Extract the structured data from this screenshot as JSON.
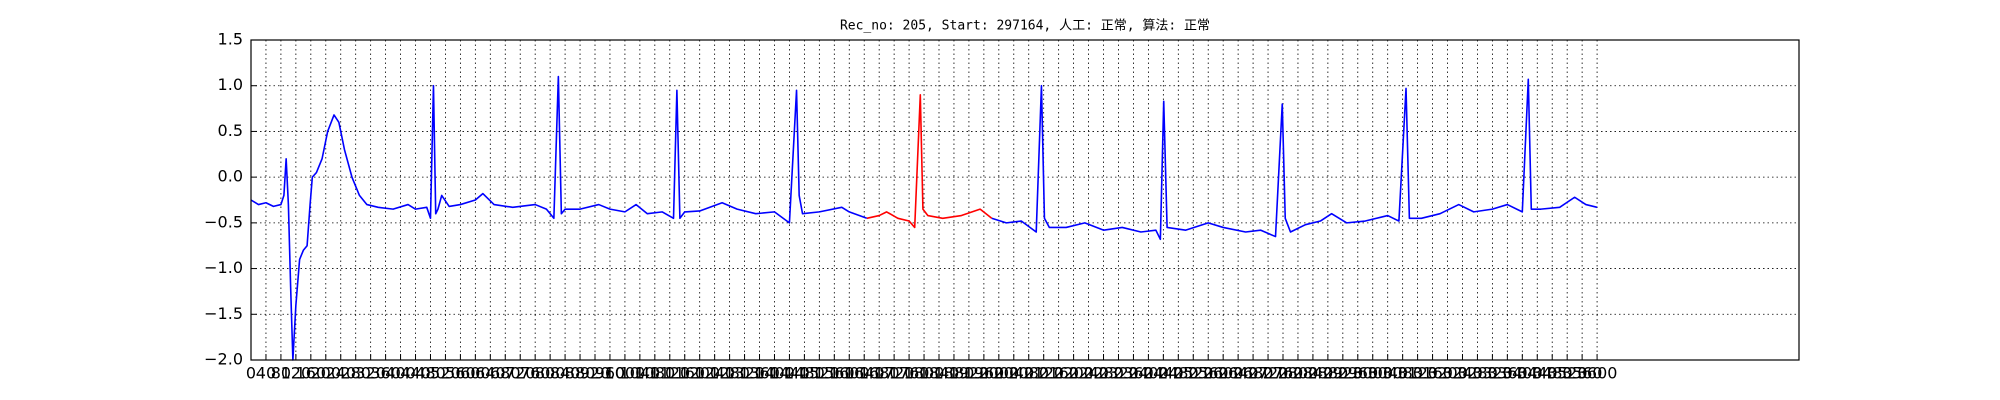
{
  "chart_data": {
    "type": "line",
    "title": "Rec_no: 205, Start: 297164, 人工: 正常, 算法: 正常",
    "xlim": [
      0,
      4140
    ],
    "ylim": [
      -2.0,
      1.5
    ],
    "xticks": [
      0,
      40,
      80,
      120,
      160,
      200,
      240,
      280,
      320,
      360,
      400,
      440,
      480,
      520,
      560,
      600,
      640,
      680,
      720,
      760,
      800,
      840,
      880,
      920,
      960,
      1000,
      1040,
      1080,
      1120,
      1160,
      1200,
      1240,
      1280,
      1320,
      1360,
      1400,
      1440,
      1480,
      1520,
      1560,
      1600,
      1640,
      1680,
      1720,
      1760,
      1800,
      1840,
      1880,
      1920,
      1960,
      2000,
      2040,
      2080,
      2120,
      2160,
      2200,
      2240,
      2280,
      2320,
      2360,
      2400,
      2440,
      2480,
      2520,
      2560,
      2600,
      2640,
      2680,
      2720,
      2760,
      2800,
      2840,
      2880,
      2920,
      2960,
      3000,
      3040,
      3080,
      3120,
      3160,
      3200,
      3240,
      3280,
      3320,
      3360,
      3400,
      3440,
      3480,
      3520,
      3560,
      3600
    ],
    "yticks": [
      {
        "value": -2.0,
        "label": "−2.0"
      },
      {
        "value": -1.5,
        "label": "−1.5"
      },
      {
        "value": -1.0,
        "label": "−1.0"
      },
      {
        "value": -0.5,
        "label": "−0.5"
      },
      {
        "value": 0.0,
        "label": "0.0"
      },
      0.5,
      {
        "value": 1.0,
        "label": "1.0"
      },
      1.5
    ],
    "grid": true,
    "series": [
      {
        "color": "#0000ff",
        "x": [
          0,
          20,
          40,
          60,
          80,
          88,
          94,
          100,
          106,
          112,
          120,
          130,
          140,
          150,
          158,
          164,
          175,
          190,
          205,
          222,
          235,
          250,
          270,
          290,
          310,
          340,
          380,
          420,
          440,
          470,
          480,
          488,
          494,
          500,
          510,
          530,
          560,
          600,
          620,
          650,
          700,
          760,
          790,
          810,
          822,
          830,
          840,
          880,
          930,
          960,
          1000,
          1030,
          1060,
          1100,
          1130,
          1139,
          1147,
          1160,
          1200,
          1260,
          1300,
          1350,
          1400,
          1440,
          1459,
          1466,
          1475,
          1520,
          1580,
          1600,
          1647,
          1800,
          1981,
          2020,
          2060,
          2100,
          2114,
          2122,
          2135,
          2180,
          2230,
          2280,
          2330,
          2380,
          2420,
          2432,
          2441,
          2450,
          2500,
          2560,
          2600,
          2660,
          2700,
          2740,
          2758,
          2766,
          2780,
          2820,
          2860,
          2890,
          2930,
          2980,
          3040,
          3070,
          3089,
          3098,
          3130,
          3180,
          3230,
          3270,
          3320,
          3360,
          3400,
          3416,
          3424,
          3450,
          3500,
          3540,
          3570,
          3600
        ],
        "values": [
          -0.25,
          -0.3,
          -0.28,
          -0.32,
          -0.3,
          -0.2,
          0.2,
          -0.3,
          -1.2,
          -2.0,
          -1.4,
          -0.9,
          -0.8,
          -0.75,
          -0.3,
          0.0,
          0.05,
          0.2,
          0.5,
          0.68,
          0.6,
          0.3,
          0.0,
          -0.2,
          -0.3,
          -0.33,
          -0.35,
          -0.3,
          -0.35,
          -0.33,
          -0.45,
          1.0,
          -0.4,
          -0.35,
          -0.2,
          -0.32,
          -0.3,
          -0.25,
          -0.18,
          -0.3,
          -0.33,
          -0.3,
          -0.35,
          -0.45,
          1.1,
          -0.4,
          -0.35,
          -0.35,
          -0.3,
          -0.35,
          -0.38,
          -0.3,
          -0.4,
          -0.38,
          -0.45,
          0.95,
          -0.45,
          -0.38,
          -0.37,
          -0.28,
          -0.35,
          -0.4,
          -0.38,
          -0.5,
          0.95,
          -0.2,
          -0.4,
          -0.38,
          -0.33,
          -0.38,
          -0.45,
          null,
          -0.45,
          -0.5,
          -0.48,
          -0.6,
          1.0,
          -0.45,
          -0.55,
          -0.55,
          -0.5,
          -0.58,
          -0.55,
          -0.6,
          -0.58,
          -0.68,
          0.83,
          -0.55,
          -0.58,
          -0.5,
          -0.55,
          -0.6,
          -0.58,
          -0.65,
          0.8,
          -0.45,
          -0.6,
          -0.52,
          -0.48,
          -0.4,
          -0.5,
          -0.48,
          -0.42,
          -0.48,
          0.97,
          -0.45,
          -0.45,
          -0.4,
          -0.3,
          -0.38,
          -0.35,
          -0.3,
          -0.38,
          1.07,
          -0.35,
          -0.35,
          -0.33,
          -0.22,
          -0.3,
          -0.33
        ]
      },
      {
        "color": "#ff0000",
        "x": [
          1647,
          1680,
          1700,
          1730,
          1760,
          1775,
          1790,
          1797,
          1810,
          1850,
          1900,
          1950,
          1981
        ],
        "values": [
          -0.45,
          -0.42,
          -0.38,
          -0.45,
          -0.48,
          -0.55,
          0.9,
          -0.35,
          -0.42,
          -0.45,
          -0.42,
          -0.35,
          -0.45
        ]
      }
    ]
  }
}
